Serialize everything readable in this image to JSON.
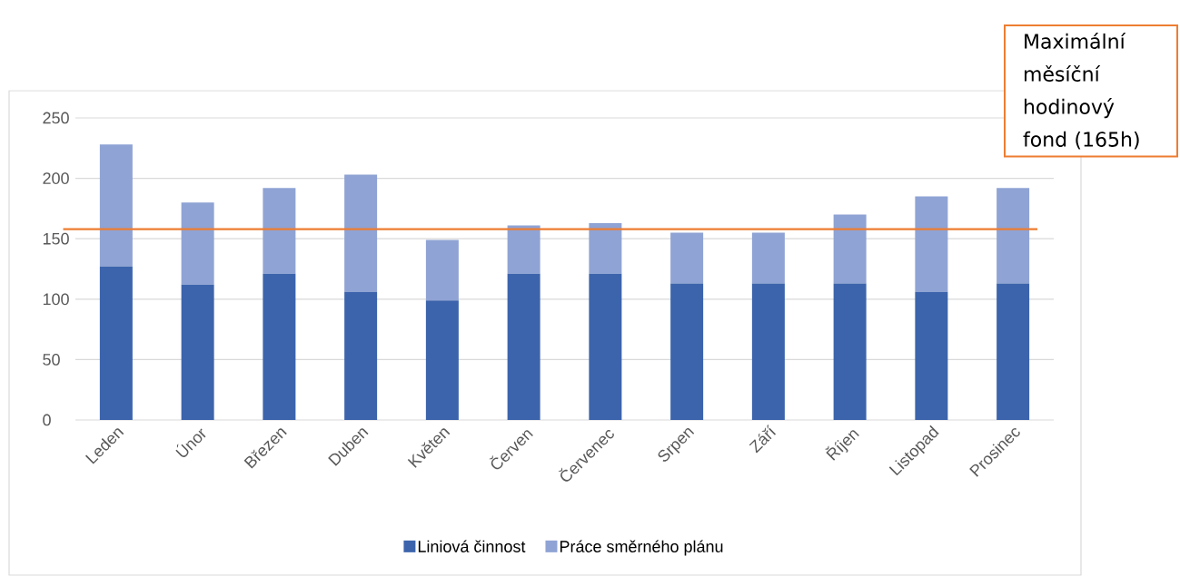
{
  "chart_data": {
    "type": "bar",
    "stacked": true,
    "categories": [
      "Leden",
      "Únor",
      "Březen",
      "Duben",
      "Květen",
      "Červen",
      "Červenec",
      "Srpen",
      "Září",
      "Říjen",
      "Listopad",
      "Prosinec"
    ],
    "series": [
      {
        "name": "Liniová činnost",
        "color": "#3c64ac",
        "values": [
          127,
          112,
          121,
          106,
          99,
          121,
          121,
          113,
          113,
          113,
          106,
          113
        ]
      },
      {
        "name": "Práce směrného plánu",
        "color": "#8fa3d4",
        "values": [
          101,
          68,
          71,
          97,
          50,
          40,
          42,
          42,
          42,
          57,
          79,
          79
        ]
      }
    ],
    "ylim": [
      0,
      250
    ],
    "yticks": [
      0,
      50,
      100,
      150,
      200,
      250
    ],
    "grid": "y",
    "legend": "bottom",
    "ref_lines": [
      {
        "axis": "y",
        "value": 158,
        "color": "#ed7d31"
      }
    ],
    "annotations": [
      "Maximální měsíční hodinový fond (165h)"
    ]
  }
}
